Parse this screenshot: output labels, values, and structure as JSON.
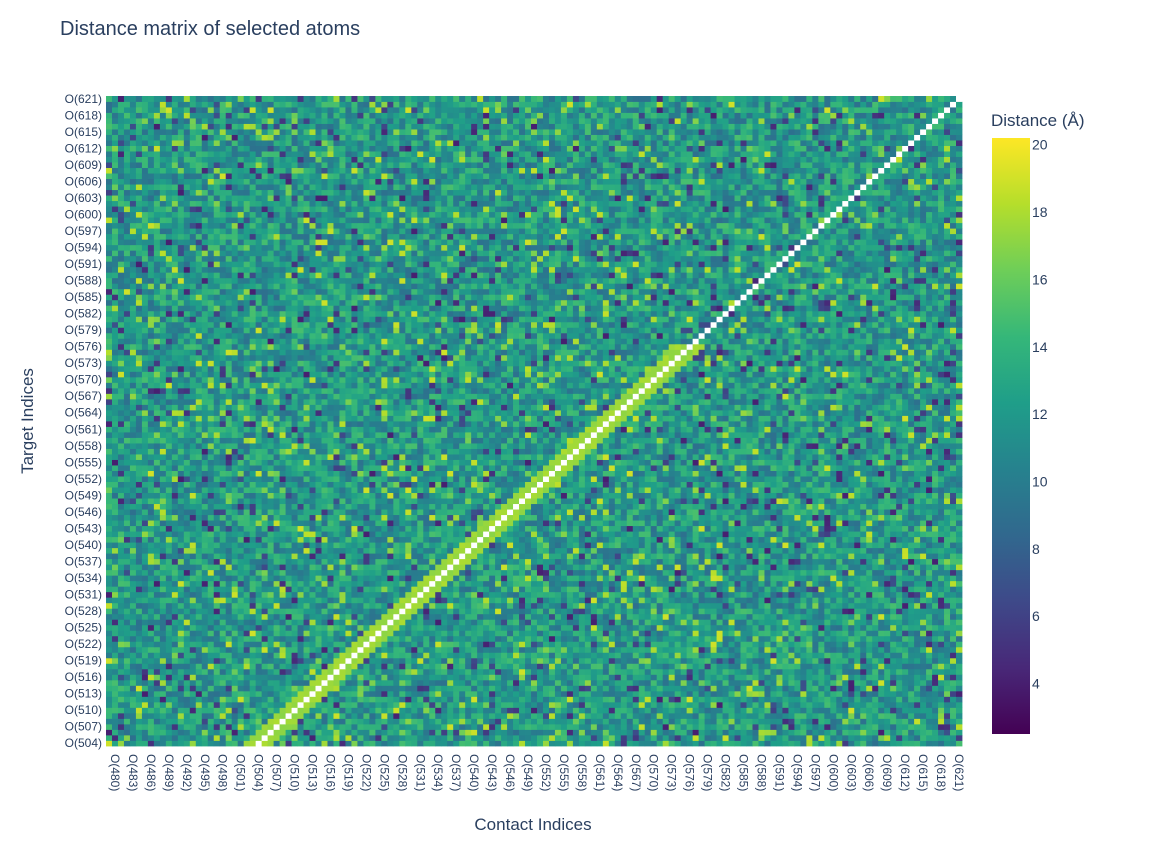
{
  "chart_data": {
    "type": "heatmap",
    "title": "Distance matrix of selected atoms",
    "xlabel": "Contact Indices",
    "ylabel": "Target Indices",
    "colorbar": {
      "title": "Distance (Å)",
      "range": [
        2.5,
        20.2
      ],
      "ticks": [
        4,
        6,
        8,
        10,
        12,
        14,
        16,
        18,
        20
      ],
      "colorscale": "Viridis",
      "colors": [
        "#440154",
        "#482878",
        "#3e4989",
        "#31688e",
        "#26828e",
        "#1f9e89",
        "#35b779",
        "#6ece58",
        "#b5de2b",
        "#fde725"
      ]
    },
    "x_index_range": [
      479,
      621
    ],
    "y_index_range": [
      504,
      621
    ],
    "x_tick_labels": [
      "O(480)",
      "O(483)",
      "O(486)",
      "O(489)",
      "O(492)",
      "O(495)",
      "O(498)",
      "O(501)",
      "O(504)",
      "O(507)",
      "O(510)",
      "O(513)",
      "O(516)",
      "O(519)",
      "O(522)",
      "O(525)",
      "O(528)",
      "O(531)",
      "O(534)",
      "O(537)",
      "O(540)",
      "O(543)",
      "O(546)",
      "O(549)",
      "O(552)",
      "O(555)",
      "O(558)",
      "O(561)",
      "O(564)",
      "O(567)",
      "O(570)",
      "O(573)",
      "O(576)",
      "O(579)",
      "O(582)",
      "O(585)",
      "O(588)",
      "O(591)",
      "O(594)",
      "O(597)",
      "O(600)",
      "O(603)",
      "O(606)",
      "O(609)",
      "O(612)",
      "O(615)",
      "O(618)",
      "O(621)"
    ],
    "y_tick_labels": [
      "O(504)",
      "O(507)",
      "O(510)",
      "O(513)",
      "O(516)",
      "O(519)",
      "O(522)",
      "O(525)",
      "O(528)",
      "O(531)",
      "O(534)",
      "O(537)",
      "O(540)",
      "O(543)",
      "O(546)",
      "O(549)",
      "O(552)",
      "O(555)",
      "O(558)",
      "O(561)",
      "O(564)",
      "O(567)",
      "O(570)",
      "O(573)",
      "O(576)",
      "O(579)",
      "O(582)",
      "O(585)",
      "O(588)",
      "O(591)",
      "O(594)",
      "O(597)",
      "O(600)",
      "O(603)",
      "O(606)",
      "O(609)",
      "O(612)",
      "O(615)",
      "O(618)",
      "O(621)"
    ],
    "diagonal_band_value": 17.5,
    "self_distance_color": "#ffffff",
    "background_value_range": [
      4,
      19
    ],
    "background_typical_value": 12
  }
}
